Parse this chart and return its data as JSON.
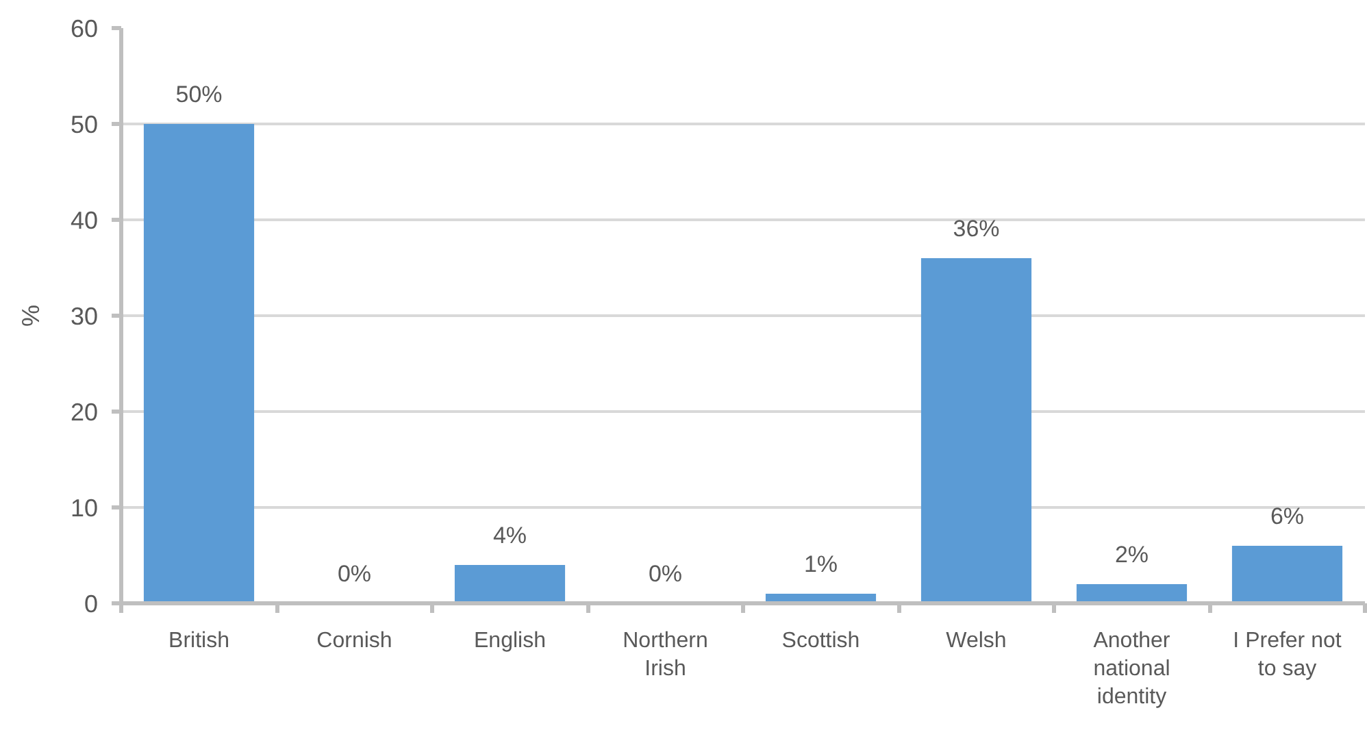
{
  "chart_data": {
    "type": "bar",
    "ylabel": "%",
    "categories": [
      "British",
      "Cornish",
      "English",
      "Northern Irish",
      "Scottish",
      "Welsh",
      "Another national identity",
      "I Prefer not to say"
    ],
    "values": [
      50,
      0,
      4,
      0,
      1,
      36,
      2,
      6
    ],
    "color": "#5b9bd5",
    "value_labels": [
      "50%",
      "0%",
      "4%",
      "0%",
      "1%",
      "36%",
      "2%",
      "6%"
    ],
    "ylim": [
      0,
      60
    ],
    "yticks": [
      0,
      10,
      20,
      30,
      40,
      50,
      60
    ],
    "grid": "y"
  }
}
